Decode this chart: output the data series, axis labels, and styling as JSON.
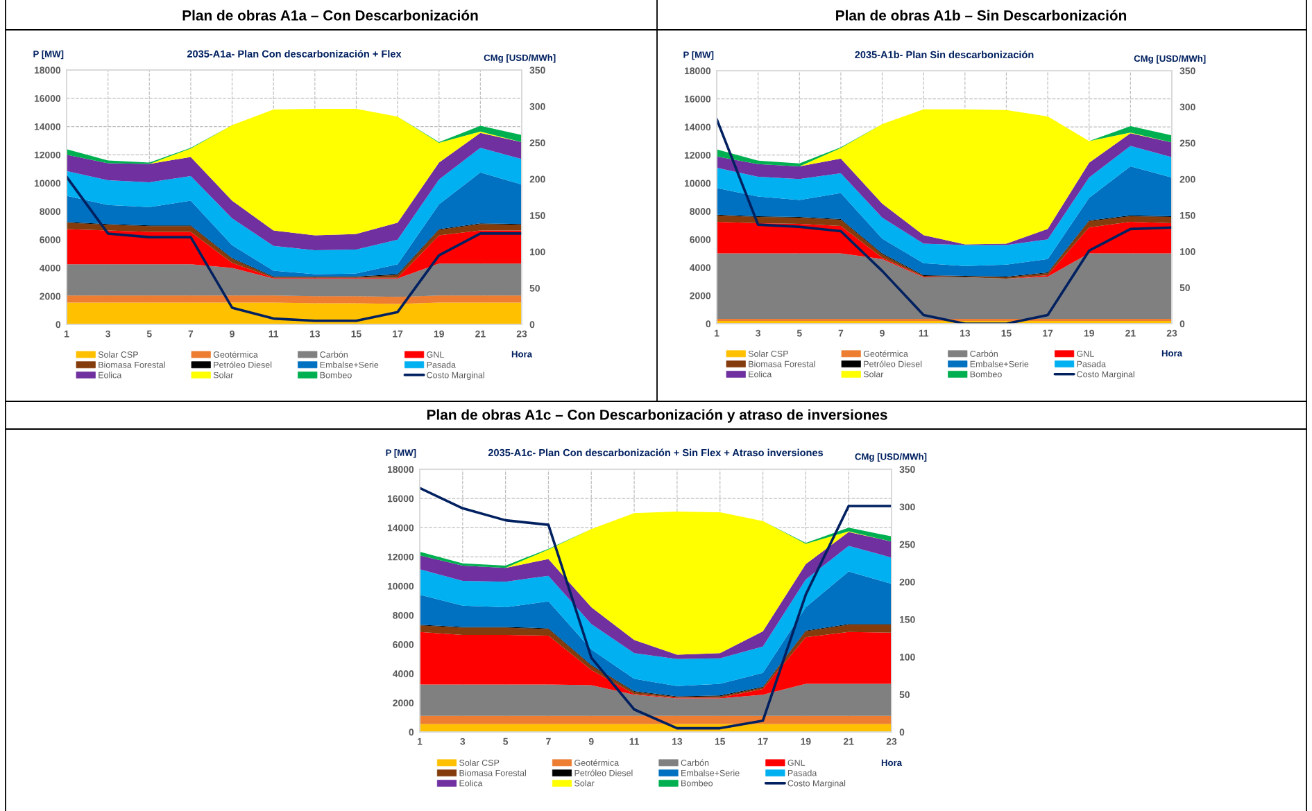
{
  "chart_data": [
    {
      "type": "area",
      "stacked": true,
      "title": "Plan de obras A1a – Con Descarbonización",
      "subtitle": "2035-A1a- Plan Con descarbonización + Flex",
      "xlabel": "Hora",
      "ylabel": "P [MW]",
      "y2label": "CMg [USD/MWh]",
      "x": [
        1,
        3,
        5,
        7,
        9,
        11,
        13,
        15,
        17,
        19,
        21,
        23
      ],
      "xlim": [
        1,
        23
      ],
      "xticks": [
        1,
        3,
        5,
        7,
        9,
        11,
        13,
        15,
        17,
        19,
        21,
        23
      ],
      "ylim": [
        0,
        18000
      ],
      "yticks": [
        0,
        2000,
        4000,
        6000,
        8000,
        10000,
        12000,
        14000,
        16000,
        18000
      ],
      "y2lim": [
        0,
        350
      ],
      "y2ticks": [
        0,
        50,
        100,
        150,
        200,
        250,
        300,
        350
      ],
      "grid": true,
      "legend": "bottom",
      "series": [
        {
          "name": "Solar CSP",
          "color": "#ffc000",
          "values": [
            1550,
            1550,
            1550,
            1550,
            1550,
            1550,
            1500,
            1500,
            1450,
            1550,
            1550,
            1550
          ]
        },
        {
          "name": "Geotérmica",
          "color": "#ed7d31",
          "values": [
            500,
            500,
            500,
            500,
            500,
            500,
            500,
            500,
            500,
            500,
            500,
            500
          ]
        },
        {
          "name": "Carbón",
          "color": "#808080",
          "values": [
            2200,
            2200,
            2200,
            2200,
            1950,
            1200,
            1250,
            1250,
            1300,
            2250,
            2250,
            2250
          ]
        },
        {
          "name": "GNL",
          "color": "#ff0000",
          "values": [
            2500,
            2400,
            2300,
            2300,
            350,
            50,
            50,
            50,
            50,
            2000,
            2350,
            2350
          ]
        },
        {
          "name": "Biomasa Forestal",
          "color": "#843c0c",
          "values": [
            450,
            400,
            400,
            400,
            300,
            50,
            50,
            50,
            200,
            400,
            450,
            400
          ]
        },
        {
          "name": "Petróleo Diesel",
          "color": "#000000",
          "values": [
            50,
            50,
            50,
            50,
            50,
            50,
            50,
            50,
            50,
            50,
            50,
            50
          ]
        },
        {
          "name": "Embalse+Serie",
          "color": "#0070c0",
          "values": [
            1850,
            1350,
            1300,
            1750,
            900,
            400,
            150,
            200,
            700,
            1750,
            3600,
            2800
          ]
        },
        {
          "name": "Pasada",
          "color": "#00b0f0",
          "values": [
            1750,
            1750,
            1750,
            1750,
            1900,
            1750,
            1700,
            1700,
            1750,
            1750,
            1750,
            1800
          ]
        },
        {
          "name": "Eolica",
          "color": "#7030a0",
          "values": [
            1150,
            1200,
            1300,
            1350,
            1250,
            1100,
            1050,
            1100,
            1200,
            1200,
            1050,
            1200
          ]
        },
        {
          "name": "Solar",
          "color": "#ffff00",
          "values": [
            0,
            0,
            0,
            600,
            5350,
            8550,
            8950,
            8850,
            7500,
            1400,
            100,
            0
          ]
        },
        {
          "name": "Bombeo",
          "color": "#00b050",
          "values": [
            400,
            200,
            100,
            50,
            0,
            0,
            0,
            0,
            0,
            50,
            400,
            500
          ]
        },
        {
          "name": "Costo Marginal",
          "color": "#002060",
          "type": "line",
          "axis": "y2",
          "values": [
            203,
            125,
            120,
            120,
            23,
            8,
            5,
            5,
            17,
            95,
            125,
            125
          ]
        }
      ]
    },
    {
      "type": "area",
      "stacked": true,
      "title": "Plan de obras A1b – Sin Descarbonización",
      "subtitle": "2035-A1b- Plan Sin descarbonización",
      "xlabel": "Hora",
      "ylabel": "P [MW]",
      "y2label": "CMg [USD/MWh]",
      "x": [
        1,
        3,
        5,
        7,
        9,
        11,
        13,
        15,
        17,
        19,
        21,
        23
      ],
      "xlim": [
        1,
        23
      ],
      "xticks": [
        1,
        3,
        5,
        7,
        9,
        11,
        13,
        15,
        17,
        19,
        21,
        23
      ],
      "ylim": [
        0,
        18000
      ],
      "yticks": [
        0,
        2000,
        4000,
        6000,
        8000,
        10000,
        12000,
        14000,
        16000,
        18000
      ],
      "y2lim": [
        0,
        350
      ],
      "y2ticks": [
        0,
        50,
        100,
        150,
        200,
        250,
        300,
        350
      ],
      "grid": true,
      "legend": "bottom",
      "series": [
        {
          "name": "Solar CSP",
          "color": "#ffc000",
          "values": [
            200,
            200,
            200,
            200,
            200,
            200,
            200,
            200,
            200,
            200,
            200,
            200
          ]
        },
        {
          "name": "Geotérmica",
          "color": "#ed7d31",
          "values": [
            150,
            150,
            150,
            150,
            150,
            150,
            150,
            150,
            150,
            150,
            150,
            150
          ]
        },
        {
          "name": "Carbón",
          "color": "#808080",
          "values": [
            4650,
            4650,
            4650,
            4650,
            4250,
            2950,
            2950,
            2850,
            3000,
            4650,
            4650,
            4650
          ]
        },
        {
          "name": "GNL",
          "color": "#ff0000",
          "values": [
            2250,
            2150,
            2100,
            1950,
            100,
            50,
            0,
            0,
            100,
            1850,
            2250,
            2150
          ]
        },
        {
          "name": "Biomasa Forestal",
          "color": "#843c0c",
          "values": [
            450,
            450,
            450,
            450,
            250,
            50,
            50,
            100,
            150,
            450,
            400,
            450
          ]
        },
        {
          "name": "Petróleo Diesel",
          "color": "#000000",
          "values": [
            50,
            50,
            50,
            50,
            50,
            50,
            50,
            50,
            50,
            50,
            50,
            50
          ]
        },
        {
          "name": "Embalse+Serie",
          "color": "#0070c0",
          "values": [
            1900,
            1400,
            1200,
            1850,
            1050,
            850,
            700,
            850,
            950,
            1600,
            3500,
            2750
          ]
        },
        {
          "name": "Pasada",
          "color": "#00b0f0",
          "values": [
            1450,
            1400,
            1500,
            1400,
            1500,
            1400,
            1500,
            1400,
            1400,
            1450,
            1450,
            1450
          ]
        },
        {
          "name": "Eolica",
          "color": "#7030a0",
          "values": [
            800,
            900,
            900,
            1050,
            1000,
            600,
            50,
            100,
            750,
            1050,
            900,
            1050
          ]
        },
        {
          "name": "Solar",
          "color": "#ffff00",
          "values": [
            0,
            0,
            0,
            750,
            5650,
            8950,
            9600,
            9500,
            8000,
            1550,
            50,
            0
          ]
        },
        {
          "name": "Bombeo",
          "color": "#00b050",
          "values": [
            500,
            250,
            200,
            50,
            0,
            0,
            0,
            0,
            0,
            0,
            450,
            500
          ]
        },
        {
          "name": "Costo Marginal",
          "color": "#002060",
          "type": "line",
          "axis": "y2",
          "values": [
            283,
            137,
            134,
            128,
            73,
            12,
            0,
            0,
            12,
            101,
            131,
            133
          ]
        }
      ]
    },
    {
      "type": "area",
      "stacked": true,
      "title": "Plan de obras A1c – Con Descarbonización y atraso de inversiones",
      "subtitle": "2035-A1c- Plan Con descarbonización + Sin Flex + Atraso inversiones",
      "xlabel": "Hora",
      "ylabel": "P [MW]",
      "y2label": "CMg [USD/MWh]",
      "x": [
        1,
        3,
        5,
        7,
        9,
        11,
        13,
        15,
        17,
        19,
        21,
        23
      ],
      "xlim": [
        1,
        23
      ],
      "xticks": [
        1,
        3,
        5,
        7,
        9,
        11,
        13,
        15,
        17,
        19,
        21,
        23
      ],
      "ylim": [
        0,
        18000
      ],
      "yticks": [
        0,
        2000,
        4000,
        6000,
        8000,
        10000,
        12000,
        14000,
        16000,
        18000
      ],
      "y2lim": [
        0,
        350
      ],
      "y2ticks": [
        0,
        50,
        100,
        150,
        200,
        250,
        300,
        350
      ],
      "grid": true,
      "legend": "bottom",
      "series": [
        {
          "name": "Solar CSP",
          "color": "#ffc000",
          "values": [
            550,
            550,
            550,
            550,
            550,
            550,
            550,
            550,
            550,
            550,
            550,
            550
          ]
        },
        {
          "name": "Geotérmica",
          "color": "#ed7d31",
          "values": [
            550,
            550,
            550,
            550,
            550,
            550,
            550,
            550,
            550,
            550,
            550,
            550
          ]
        },
        {
          "name": "Carbón",
          "color": "#808080",
          "values": [
            2150,
            2150,
            2150,
            2150,
            2100,
            1450,
            1200,
            1200,
            1450,
            2200,
            2200,
            2200
          ]
        },
        {
          "name": "GNL",
          "color": "#ff0000",
          "values": [
            3600,
            3400,
            3400,
            3350,
            1050,
            50,
            50,
            50,
            400,
            3200,
            3550,
            3500
          ]
        },
        {
          "name": "Biomasa Forestal",
          "color": "#843c0c",
          "values": [
            450,
            500,
            500,
            450,
            300,
            150,
            50,
            100,
            100,
            400,
            500,
            550
          ]
        },
        {
          "name": "Petróleo Diesel",
          "color": "#000000",
          "values": [
            50,
            50,
            50,
            50,
            50,
            50,
            50,
            50,
            50,
            50,
            50,
            50
          ]
        },
        {
          "name": "Embalse+Serie",
          "color": "#0070c0",
          "values": [
            2050,
            1450,
            1350,
            1850,
            1050,
            850,
            700,
            800,
            950,
            1600,
            3600,
            2750
          ]
        },
        {
          "name": "Pasada",
          "color": "#00b0f0",
          "values": [
            1750,
            1700,
            1750,
            1750,
            1750,
            1750,
            1850,
            1750,
            1800,
            1900,
            1750,
            1800
          ]
        },
        {
          "name": "Eolica",
          "color": "#7030a0",
          "values": [
            950,
            1050,
            950,
            1150,
            1150,
            900,
            300,
            350,
            1050,
            1050,
            950,
            1100
          ]
        },
        {
          "name": "Solar",
          "color": "#ffff00",
          "values": [
            0,
            0,
            0,
            650,
            5350,
            8700,
            9800,
            9650,
            7550,
            1400,
            50,
            0
          ]
        },
        {
          "name": "Bombeo",
          "color": "#00b050",
          "values": [
            250,
            150,
            150,
            50,
            0,
            0,
            0,
            0,
            0,
            50,
            250,
            350
          ]
        },
        {
          "name": "Costo Marginal",
          "color": "#002060",
          "type": "line",
          "axis": "y2",
          "values": [
            325,
            298,
            282,
            276,
            99,
            30,
            5,
            5,
            15,
            183,
            301,
            301
          ]
        }
      ]
    }
  ]
}
